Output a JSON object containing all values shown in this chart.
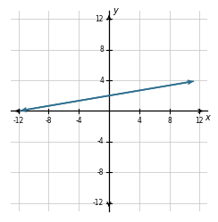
{
  "xlim": [
    -13,
    13
  ],
  "ylim": [
    -13,
    13
  ],
  "axis_lim": [
    -12,
    12
  ],
  "xticks": [
    -12,
    -8,
    -4,
    0,
    4,
    8,
    12
  ],
  "yticks": [
    -12,
    -8,
    -4,
    0,
    4,
    8,
    12
  ],
  "xlabel": "x",
  "ylabel": "y",
  "line_x": [
    -12,
    11.5
  ],
  "line_y": [
    0,
    3.917
  ],
  "line_color": "#2e6e8e",
  "line_width": 1.2,
  "background_color": "#ffffff",
  "grid_color": "#c0c0c0",
  "tick_fontsize": 5.5,
  "label_fontsize": 7
}
